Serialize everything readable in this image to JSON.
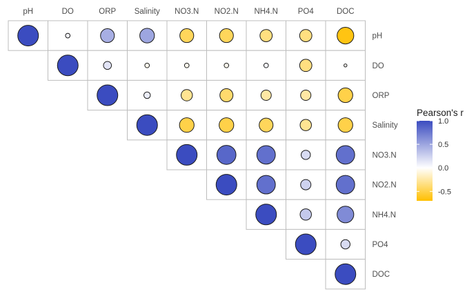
{
  "chart_data": {
    "type": "heatmap",
    "title": "",
    "xlabel": "",
    "ylabel": "",
    "variables": [
      "pH",
      "DO",
      "ORP",
      "Salinity",
      "NO3.N",
      "NO2.N",
      "NH4.N",
      "PO4",
      "DOC"
    ],
    "matrix": [
      [
        1.0,
        0.05,
        0.45,
        0.5,
        -0.45,
        -0.45,
        -0.35,
        -0.35,
        -0.65
      ],
      [
        null,
        1.0,
        0.15,
        -0.05,
        -0.05,
        -0.05,
        0.05,
        -0.35,
        -0.02
      ],
      [
        null,
        null,
        1.0,
        0.1,
        -0.3,
        -0.4,
        -0.25,
        -0.25,
        -0.5
      ],
      [
        null,
        null,
        null,
        1.0,
        -0.5,
        -0.5,
        -0.45,
        -0.3,
        -0.5
      ],
      [
        null,
        null,
        null,
        null,
        1.0,
        0.85,
        0.8,
        0.2,
        0.8
      ],
      [
        null,
        null,
        null,
        null,
        null,
        1.0,
        0.8,
        0.25,
        0.8
      ],
      [
        null,
        null,
        null,
        null,
        null,
        null,
        1.0,
        0.3,
        0.65
      ],
      [
        null,
        null,
        null,
        null,
        null,
        null,
        null,
        1.0,
        0.2
      ],
      [
        null,
        null,
        null,
        null,
        null,
        null,
        null,
        null,
        1.0
      ]
    ],
    "legend": {
      "title": "Pearson's r",
      "position": "right",
      "ticks": [
        1.0,
        0.5,
        0.0,
        -0.5
      ],
      "tick_labels": [
        "1.0",
        "0.5",
        "0.0",
        "-0.5"
      ],
      "range": [
        -0.7,
        1.0
      ]
    },
    "colors": {
      "high": "#3b4cc0",
      "mid": "#ffffff",
      "low": "#ffbf00"
    },
    "x_axis_position": "top",
    "y_axis_position": "right",
    "triangle": "upper",
    "grid": false
  }
}
